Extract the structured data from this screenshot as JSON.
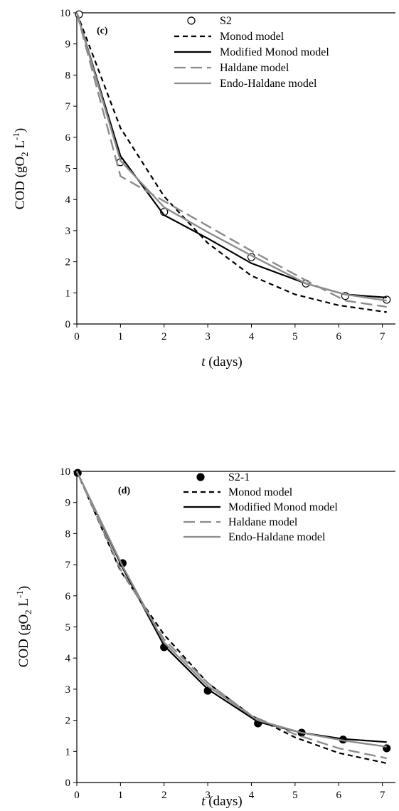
{
  "chart_data": [
    {
      "type": "line",
      "panel_label": "(c)",
      "ylabel_main": "COD (gO",
      "ylabel_sub": "2",
      "ylabel_unit": " L",
      "ylabel_sup": "-1",
      "ylabel_close": ")",
      "xlabel_italic": "t",
      "xlabel_rest": " (days)",
      "xlim": [
        0,
        7.3
      ],
      "ylim": [
        0,
        10
      ],
      "xticks": [
        0,
        1,
        2,
        3,
        4,
        5,
        6,
        7
      ],
      "yticks": [
        0,
        1,
        2,
        3,
        4,
        5,
        6,
        7,
        8,
        9,
        10
      ],
      "legend_position": "top-right",
      "series": [
        {
          "name": "S2",
          "style": "open-marker",
          "color": "#000000",
          "x": [
            0.05,
            1.0,
            2.0,
            4.0,
            5.25,
            6.15,
            7.1
          ],
          "y": [
            9.95,
            5.2,
            3.6,
            2.15,
            1.3,
            0.9,
            0.78
          ]
        },
        {
          "name": "Monod model",
          "style": "dashed",
          "color": "#000000",
          "x": [
            0,
            1,
            2,
            3,
            4,
            5,
            6,
            7.1
          ],
          "y": [
            10,
            6.3,
            4.1,
            2.6,
            1.55,
            0.95,
            0.6,
            0.38
          ]
        },
        {
          "name": "Modified Monod model",
          "style": "solid",
          "color": "#000000",
          "x": [
            0,
            1,
            2,
            3,
            4,
            5.25,
            6.15,
            7.1
          ],
          "y": [
            10,
            5.4,
            3.5,
            2.75,
            1.95,
            1.3,
            0.95,
            0.85
          ]
        },
        {
          "name": "Haldane model",
          "style": "longdash",
          "color": "#8c8c8c",
          "x": [
            0,
            1,
            2,
            3,
            4,
            5.25,
            6.15,
            7.1
          ],
          "y": [
            10,
            4.75,
            3.95,
            3.15,
            2.35,
            1.4,
            0.75,
            0.55
          ]
        },
        {
          "name": "Endo-Haldane model",
          "style": "solid",
          "color": "#8c8c8c",
          "x": [
            0,
            1,
            2,
            3,
            4,
            5.25,
            6.15,
            7.1
          ],
          "y": [
            10,
            5.25,
            3.75,
            2.95,
            2.2,
            1.3,
            0.95,
            0.75
          ]
        }
      ]
    },
    {
      "type": "line",
      "panel_label": "(d)",
      "ylabel_main": "COD (gO",
      "ylabel_sub": "2",
      "ylabel_unit": " L",
      "ylabel_sup": "-1",
      "ylabel_close": ")",
      "xlabel_italic": "t",
      "xlabel_rest": " (days)",
      "xlim": [
        0,
        7.3
      ],
      "ylim": [
        0,
        10
      ],
      "xticks": [
        0,
        1,
        2,
        3,
        4,
        5,
        6,
        7
      ],
      "yticks": [
        0,
        1,
        2,
        3,
        4,
        5,
        6,
        7,
        8,
        9,
        10
      ],
      "legend_position": "top-right",
      "series": [
        {
          "name": "S2-1",
          "style": "filled-marker",
          "color": "#000000",
          "x": [
            0.02,
            1.05,
            2.0,
            3.0,
            4.15,
            5.15,
            6.1,
            7.1
          ],
          "y": [
            9.95,
            7.05,
            4.35,
            2.95,
            1.9,
            1.6,
            1.38,
            1.1
          ]
        },
        {
          "name": "Monod model",
          "style": "dashed",
          "color": "#000000",
          "x": [
            0,
            1,
            2,
            3,
            4,
            5,
            6,
            7.1
          ],
          "y": [
            10,
            6.8,
            4.75,
            3.2,
            2.15,
            1.45,
            0.95,
            0.62
          ]
        },
        {
          "name": "Modified Monod model",
          "style": "solid",
          "color": "#000000",
          "x": [
            0,
            1.05,
            2.0,
            3.0,
            4.15,
            5.15,
            6.1,
            7.1
          ],
          "y": [
            10,
            6.9,
            4.4,
            3.0,
            1.95,
            1.6,
            1.4,
            1.3
          ]
        },
        {
          "name": "Haldane model",
          "style": "longdash",
          "color": "#8c8c8c",
          "x": [
            0,
            1,
            2,
            3,
            4,
            5,
            6,
            7.1
          ],
          "y": [
            10,
            6.85,
            4.6,
            3.2,
            2.15,
            1.55,
            1.1,
            0.78
          ]
        },
        {
          "name": "Endo-Haldane model",
          "style": "solid",
          "color": "#8c8c8c",
          "x": [
            0,
            1.05,
            2.0,
            3.0,
            4.15,
            5.15,
            6.1,
            7.1
          ],
          "y": [
            10,
            6.95,
            4.5,
            3.1,
            2.0,
            1.6,
            1.35,
            1.15
          ]
        }
      ]
    }
  ]
}
